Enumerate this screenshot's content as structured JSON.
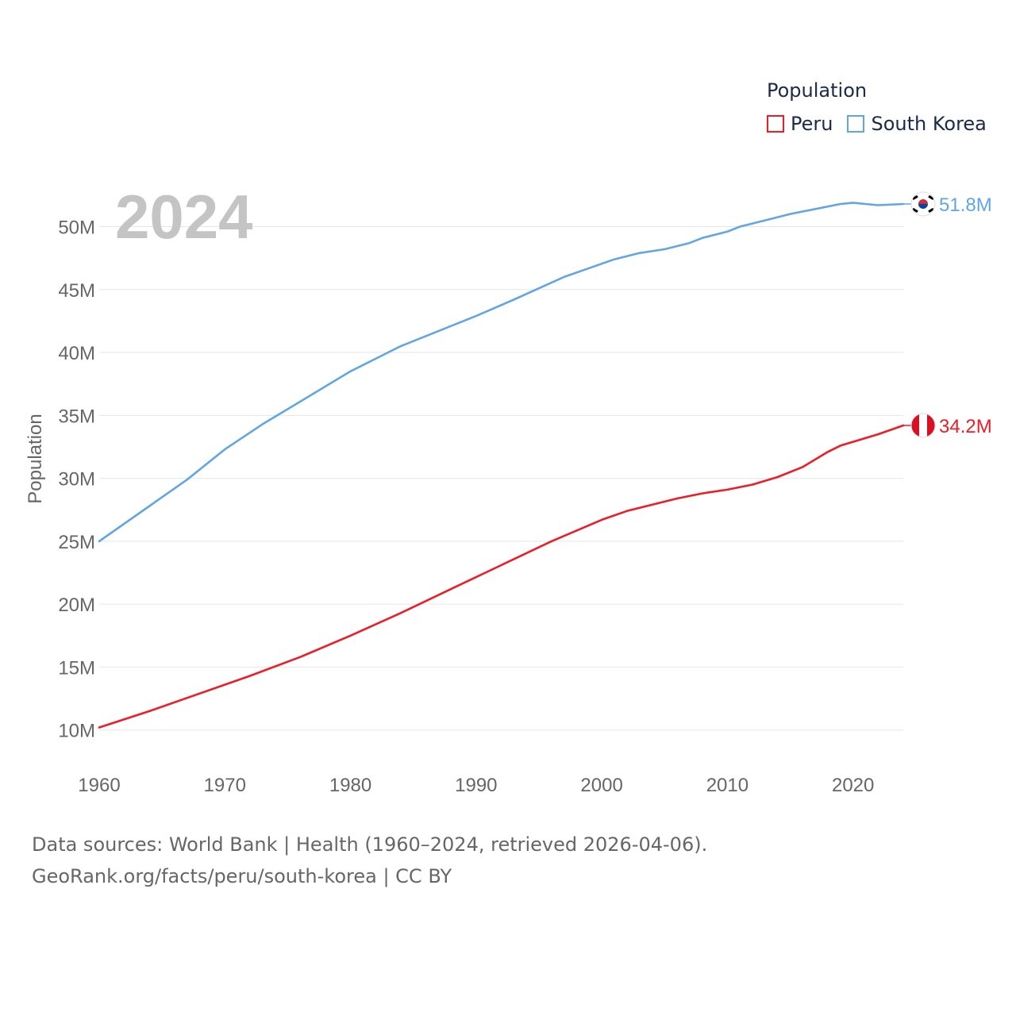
{
  "legend": {
    "title": "Population",
    "items": [
      {
        "label": "Peru",
        "color": "#ee1c25"
      },
      {
        "label": "South Korea",
        "color": "#62a5e4"
      }
    ]
  },
  "footer": {
    "line1": "Data sources: World Bank | Health (1960–2024, retrieved 2026-04-06).",
    "line2": "GeoRank.org/facts/peru/south-korea | CC BY"
  },
  "chart_data": {
    "type": "line",
    "title": "",
    "year_display": "2024",
    "ylabel": "Population",
    "xlabel": "",
    "xlim": [
      1960,
      2024
    ],
    "ylim": [
      7.9,
      53.5
    ],
    "x_ticks": [
      1960,
      1970,
      1980,
      1990,
      2000,
      2010,
      2020
    ],
    "x_tick_labels": [
      "1960",
      "1970",
      "1980",
      "1990",
      "2000",
      "2010",
      "2020"
    ],
    "y_ticks": [
      10,
      15,
      20,
      25,
      30,
      35,
      40,
      45,
      50
    ],
    "y_tick_labels": [
      "10M",
      "15M",
      "20M",
      "25M",
      "30M",
      "35M",
      "40M",
      "45M",
      "50M"
    ],
    "grid": true,
    "series": [
      {
        "name": "South Korea",
        "color": "#62a5e4",
        "end_label": "51.8M",
        "flag": "south-korea",
        "x": [
          1960,
          1964,
          1967,
          1970,
          1973,
          1976,
          1980,
          1983,
          1984,
          1987,
          1990,
          1993,
          1995,
          1997,
          1999,
          2001,
          2003,
          2005,
          2007,
          2008,
          2010,
          2011,
          2013,
          2015,
          2017,
          2019,
          2020,
          2021,
          2022,
          2024
        ],
        "values": [
          25.0,
          27.8,
          29.9,
          32.3,
          34.3,
          36.1,
          38.5,
          40.0,
          40.5,
          41.7,
          42.9,
          44.2,
          45.1,
          46.0,
          46.7,
          47.4,
          47.9,
          48.2,
          48.7,
          49.1,
          49.6,
          50.0,
          50.5,
          51.0,
          51.4,
          51.8,
          51.9,
          51.8,
          51.7,
          51.8
        ]
      },
      {
        "name": "Peru",
        "color": "#ee1c25",
        "end_label": "34.2M",
        "flag": "peru",
        "x": [
          1960,
          1964,
          1968,
          1972,
          1976,
          1980,
          1984,
          1988,
          1992,
          1996,
          2000,
          2002,
          2004,
          2006,
          2008,
          2010,
          2012,
          2014,
          2016,
          2018,
          2019,
          2020,
          2022,
          2024
        ],
        "values": [
          10.2,
          11.5,
          12.9,
          14.3,
          15.8,
          17.5,
          19.3,
          21.2,
          23.1,
          25.0,
          26.7,
          27.4,
          27.9,
          28.4,
          28.8,
          29.1,
          29.5,
          30.1,
          30.9,
          32.1,
          32.6,
          32.9,
          33.5,
          34.2
        ]
      }
    ]
  }
}
